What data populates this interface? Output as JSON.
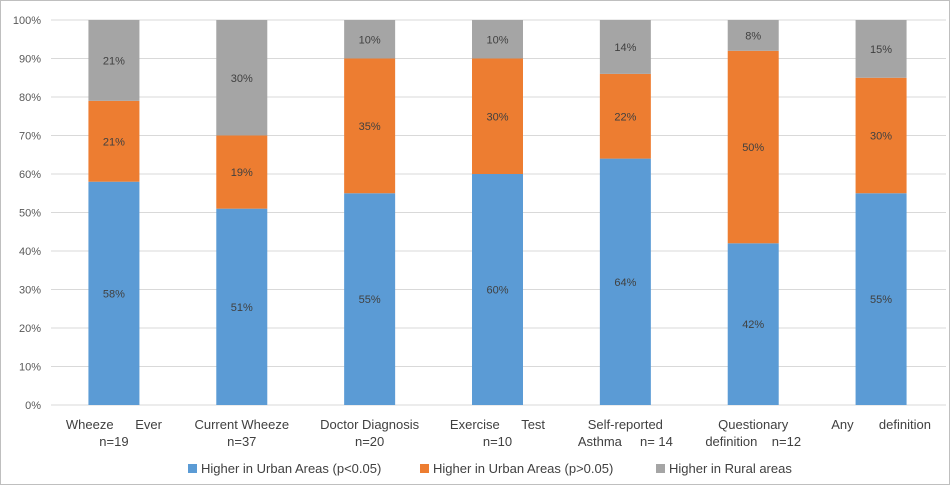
{
  "chart_data": {
    "type": "bar",
    "stacked": true,
    "percent_stacked": true,
    "categories": [
      [
        "Wheeze      Ever",
        "n=19"
      ],
      [
        "Current Wheeze",
        "n=37"
      ],
      [
        "Doctor Diagnosis",
        "n=20"
      ],
      [
        "Exercise      Test",
        "n=10"
      ],
      [
        "Self-reported",
        "Asthma     n= 14"
      ],
      [
        "Questionary",
        "definition    n=12"
      ],
      [
        "Any       definition",
        ""
      ]
    ],
    "series": [
      {
        "name": "Higher in Urban Areas (p<0.05)",
        "color": "#5b9bd5",
        "values": [
          58,
          51,
          55,
          60,
          64,
          42,
          55
        ],
        "labels": [
          "58%",
          "51%",
          "55%",
          "60%",
          "64%",
          "42%",
          "55%"
        ]
      },
      {
        "name": "Higher in Urban Areas (p>0.05)",
        "color": "#ed7d31",
        "values": [
          21,
          19,
          35,
          30,
          22,
          50,
          30
        ],
        "labels": [
          "21%",
          "19%",
          "35%",
          "30%",
          "22%",
          "50%",
          "30%"
        ]
      },
      {
        "name": "Higher in Rural areas",
        "color": "#a5a5a5",
        "values": [
          21,
          30,
          10,
          10,
          14,
          8,
          15
        ],
        "labels": [
          "21%",
          "30%",
          "10%",
          "10%",
          "14%",
          "8%",
          "15%"
        ]
      }
    ],
    "yticks": [
      "0%",
      "10%",
      "20%",
      "30%",
      "40%",
      "50%",
      "60%",
      "70%",
      "80%",
      "90%",
      "100%"
    ],
    "ylim": [
      0,
      100
    ],
    "grid": true,
    "legend_position": "bottom"
  }
}
